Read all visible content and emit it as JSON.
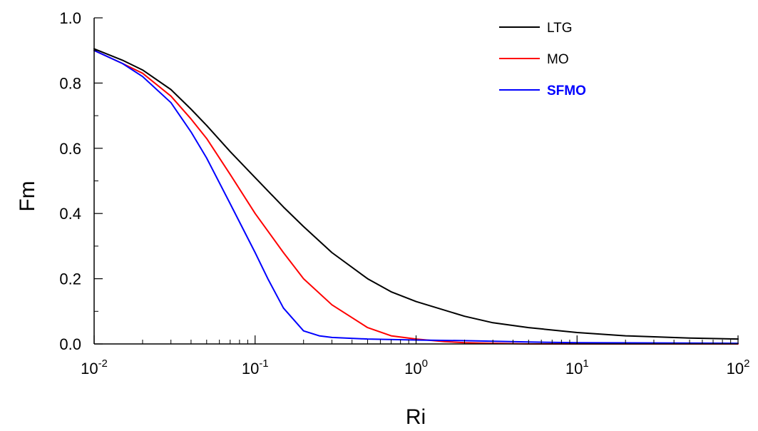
{
  "chart_data": {
    "type": "line",
    "title": "",
    "xlabel": "Ri",
    "ylabel": "Fm",
    "xscale": "log",
    "xlim": [
      0.01,
      100
    ],
    "ylim": [
      0.0,
      1.0
    ],
    "grid": false,
    "legend_position": "top-right",
    "x_ticks": [
      {
        "value": 0.01,
        "base": "10",
        "exp": "-2"
      },
      {
        "value": 0.1,
        "base": "10",
        "exp": "-1"
      },
      {
        "value": 1,
        "base": "10",
        "exp": "0"
      },
      {
        "value": 10,
        "base": "10",
        "exp": "1"
      },
      {
        "value": 100,
        "base": "10",
        "exp": "2"
      }
    ],
    "y_ticks": [
      {
        "value": 0.0,
        "label": "0.0"
      },
      {
        "value": 0.2,
        "label": "0.2"
      },
      {
        "value": 0.4,
        "label": "0.4"
      },
      {
        "value": 0.6,
        "label": "0.6"
      },
      {
        "value": 0.8,
        "label": "0.8"
      },
      {
        "value": 1.0,
        "label": "1.0"
      }
    ],
    "series": [
      {
        "name": "LTG",
        "color": "#000000",
        "x": [
          0.01,
          0.015,
          0.02,
          0.03,
          0.04,
          0.05,
          0.07,
          0.1,
          0.15,
          0.2,
          0.3,
          0.5,
          0.7,
          1,
          2,
          3,
          5,
          10,
          20,
          50,
          100
        ],
        "y": [
          0.905,
          0.87,
          0.84,
          0.78,
          0.72,
          0.67,
          0.59,
          0.51,
          0.42,
          0.36,
          0.28,
          0.2,
          0.16,
          0.13,
          0.085,
          0.065,
          0.05,
          0.035,
          0.025,
          0.018,
          0.015
        ]
      },
      {
        "name": "MO",
        "color": "#ff0000",
        "x": [
          0.01,
          0.015,
          0.02,
          0.03,
          0.04,
          0.05,
          0.07,
          0.1,
          0.15,
          0.2,
          0.3,
          0.5,
          0.7,
          1,
          1.5,
          2,
          3,
          5,
          10,
          100
        ],
        "y": [
          0.9,
          0.86,
          0.83,
          0.76,
          0.69,
          0.63,
          0.52,
          0.4,
          0.28,
          0.2,
          0.12,
          0.05,
          0.025,
          0.015,
          0.007,
          0.004,
          0.002,
          0.0,
          0.0,
          0.0
        ]
      },
      {
        "name": "SFMO",
        "color": "#0000ff",
        "x": [
          0.01,
          0.015,
          0.02,
          0.03,
          0.04,
          0.05,
          0.07,
          0.1,
          0.12,
          0.15,
          0.2,
          0.25,
          0.3,
          0.5,
          1,
          2,
          5,
          10,
          100
        ],
        "y": [
          0.9,
          0.86,
          0.82,
          0.74,
          0.65,
          0.57,
          0.43,
          0.28,
          0.2,
          0.11,
          0.04,
          0.025,
          0.02,
          0.015,
          0.012,
          0.01,
          0.006,
          0.004,
          0.002
        ]
      }
    ]
  }
}
